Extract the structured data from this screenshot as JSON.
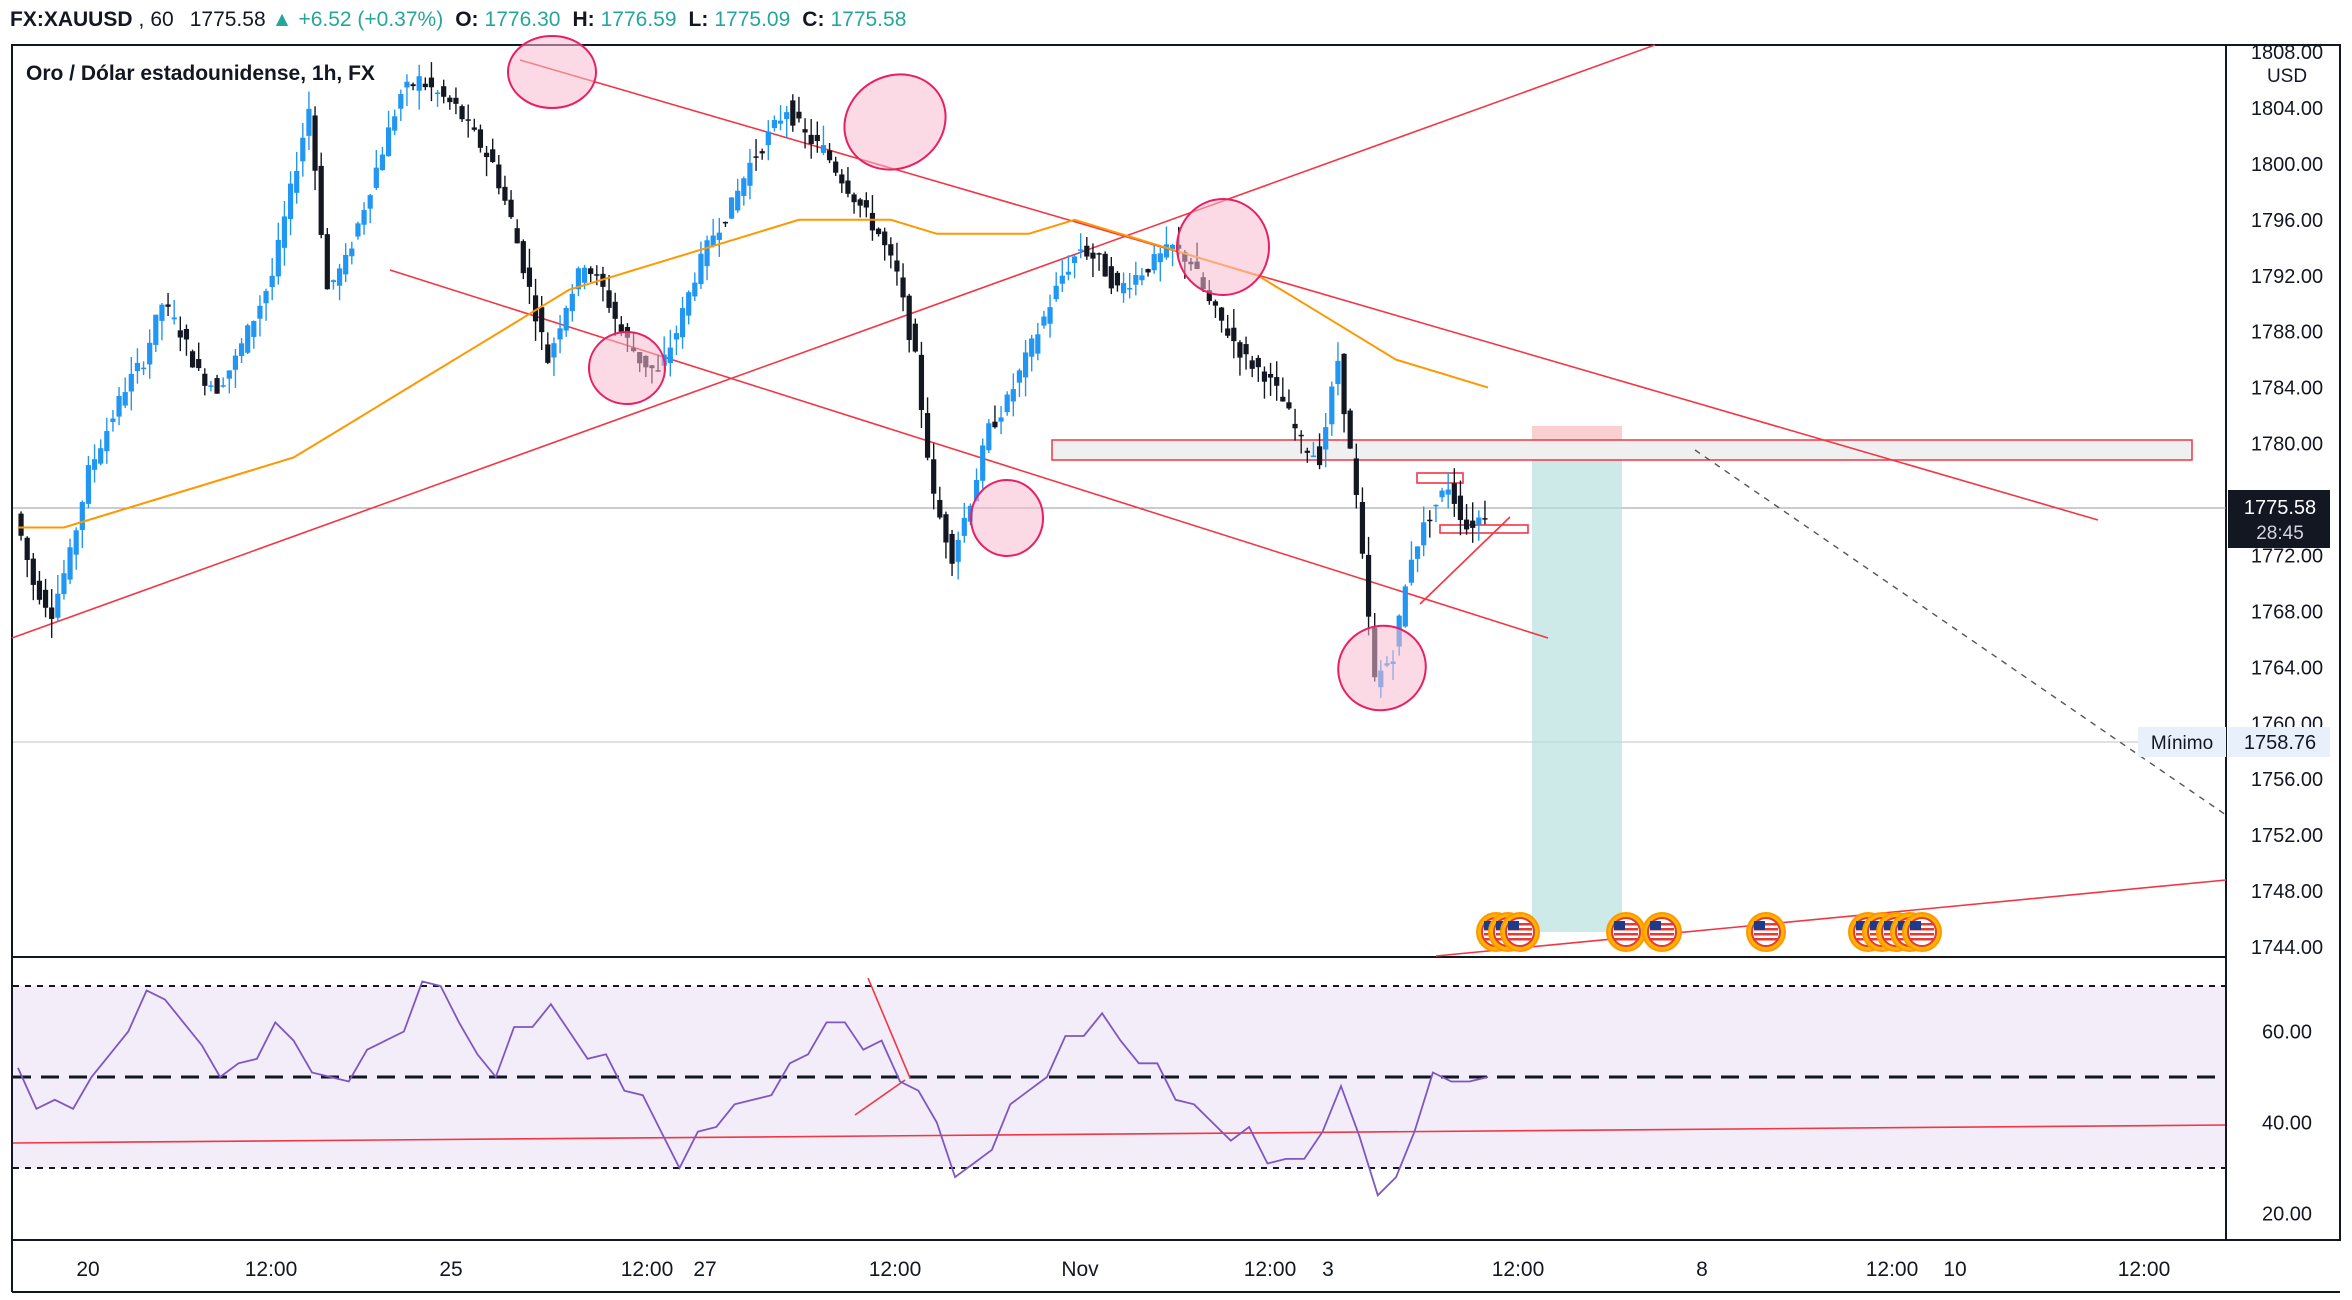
{
  "header": {
    "symbol": "FX:XAUUSD",
    "interval": "60",
    "price": "1775.58",
    "change": "+6.52 (+0.37%)",
    "open_label": "O:",
    "open": "1776.30",
    "high_label": "H:",
    "high": "1776.59",
    "low_label": "L:",
    "low": "1775.09",
    "close_label": "C:",
    "close": "1775.58"
  },
  "legend": {
    "title": "Oro / Dólar estadounidense, 1h, FX"
  },
  "price_axis": {
    "currency": "USD",
    "current_price": "1775.58",
    "countdown": "28:45",
    "min_label": "Mínimo",
    "min_value": "1758.76"
  },
  "colors": {
    "up": "#2196f3",
    "down": "#131722",
    "trendline": "#f23645",
    "ema": "#ff9800",
    "rsi": "#7e57c2",
    "target_zone": "#b2dfdb",
    "stop_zone": "#f8bbbb"
  },
  "chart_data": [
    {
      "type": "candlestick",
      "title": "Oro / Dólar estadounidense, 1h, FX",
      "ylim": [
        1742,
        1808
      ],
      "y_ticks": [
        "1744.00",
        "1748.00",
        "1752.00",
        "1756.00",
        "1760.00",
        "1764.00",
        "1768.00",
        "1772.00",
        "1776.00",
        "1780.00",
        "1784.00",
        "1788.00",
        "1792.00",
        "1796.00",
        "1800.00",
        "1804.00",
        "1808.00"
      ],
      "x_tick_labels": [
        "20",
        "12:00",
        "25",
        "12:00",
        "27",
        "12:00",
        "Nov",
        "12:00",
        "3",
        "12:00",
        "8",
        "12:00",
        "10",
        "12:00"
      ],
      "close_path": [
        1775,
        1770,
        1768,
        1772,
        1778,
        1781,
        1784,
        1786,
        1790,
        1788,
        1785,
        1784,
        1786,
        1789,
        1792,
        1798,
        1804,
        1791,
        1793,
        1797,
        1801,
        1805,
        1806,
        1805,
        1804,
        1802,
        1800,
        1796,
        1791,
        1786,
        1790,
        1793,
        1791,
        1788,
        1786,
        1785,
        1788,
        1792,
        1795,
        1797,
        1800,
        1802,
        1804,
        1802,
        1801,
        1799,
        1797,
        1795,
        1792,
        1786,
        1776,
        1772,
        1776,
        1781,
        1783,
        1786,
        1789,
        1792,
        1794,
        1793,
        1791,
        1792,
        1793,
        1794,
        1793,
        1790,
        1788,
        1786,
        1785,
        1783,
        1780,
        1779,
        1786,
        1776,
        1763,
        1765,
        1772,
        1775,
        1777,
        1774,
        1775
      ],
      "ema_path": [
        1774,
        1774,
        1775,
        1776,
        1777,
        1778,
        1779,
        1781,
        1783,
        1785,
        1787,
        1789,
        1791,
        1792,
        1793,
        1794,
        1795,
        1796,
        1796,
        1796,
        1795,
        1795,
        1795,
        1796,
        1795,
        1794,
        1793,
        1792,
        1790,
        1788,
        1786,
        1785,
        1784
      ],
      "current_price": 1775.58,
      "min_value": 1758.76
    },
    {
      "type": "line",
      "title": "RSI",
      "ylim": [
        16,
        74
      ],
      "y_ticks": [
        "20.00",
        "40.00",
        "60.00"
      ],
      "levels": [
        70,
        50,
        30
      ],
      "values": [
        52,
        45,
        42,
        44,
        48,
        55,
        62,
        66,
        68,
        60,
        57,
        52,
        50,
        55,
        60,
        58,
        53,
        47,
        50,
        54,
        58,
        62,
        68,
        71,
        60,
        55,
        52,
        58,
        62,
        64,
        60,
        56,
        52,
        48,
        44,
        38,
        32,
        35,
        40,
        42,
        45,
        48,
        50,
        56,
        60,
        62,
        58,
        55,
        50,
        45,
        40,
        30,
        28,
        35,
        42,
        47,
        52,
        56,
        60,
        62,
        58,
        55,
        50,
        46,
        42,
        40,
        38,
        36,
        32,
        30,
        32,
        40,
        45,
        38,
        22,
        28,
        40,
        48,
        50,
        47,
        50
      ]
    }
  ]
}
